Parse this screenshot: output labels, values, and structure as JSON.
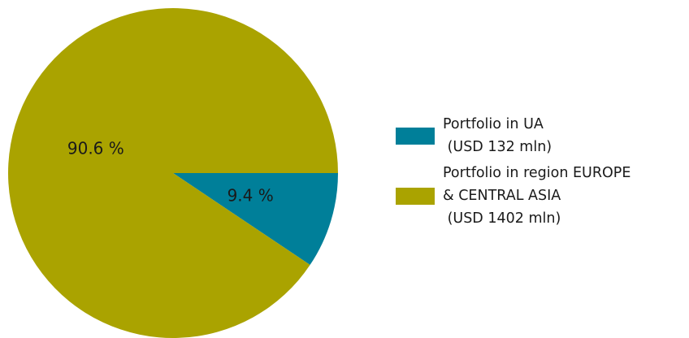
{
  "chart_data": {
    "type": "pie",
    "categories": [
      "Portfolio in UA\n (USD 132 mln)",
      "Portfolio in region EUROPE\n& CENTRAL ASIA\n (USD 1402 mln)"
    ],
    "values": [
      9.4,
      90.6
    ],
    "value_labels": [
      "9.4 %",
      "90.6 %"
    ],
    "colors": [
      "#007f99",
      "#aaa300"
    ],
    "legend": "right"
  }
}
